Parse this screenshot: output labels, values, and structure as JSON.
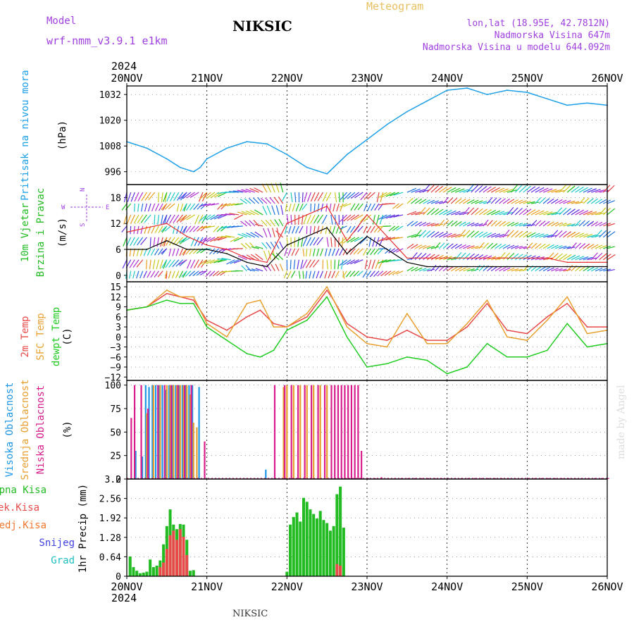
{
  "header": {
    "model_label": "Model",
    "model_name": "wrf-nmm_v3.9.1 e1km",
    "station": "NIKSIC",
    "meteogram": "Meteogram",
    "lonlat": "lon,lat (18.95E, 42.7812N)",
    "altitude": "Nadmorska Visina 647m",
    "altitude_model": "Nadmorska Visina u modelu 644.092m",
    "credit": "made by Angel",
    "footer_station": "NIKSIC"
  },
  "colors": {
    "pressure": "#1ea0e6",
    "wind_label": "#22bb22",
    "temp2m": "#e84a4a",
    "sfc_temp": "#e8a030",
    "dewpoint": "#22cc22",
    "cloud_high": "#1e96e6",
    "cloud_mid": "#e8a030",
    "cloud_low": "#d81c8c",
    "wind_speed": "#000000",
    "wind_gust": "#e83030",
    "precip_total": "#22bb22",
    "precip_conv": "#e84a4a",
    "precip_frozen": "#f07830",
    "snow": "#4040e0",
    "hail": "#20c0c0",
    "compass": "#a040e0",
    "credit": "#dddddd"
  },
  "chart_data": [
    {
      "id": "pressure",
      "type": "line",
      "ylabel": [
        "Pritisak na nivou mora",
        "(hPa)"
      ],
      "ylim": [
        990,
        1036
      ],
      "yticks": [
        996,
        1008,
        1020,
        1032
      ],
      "x_units": "hours since 20NOV 00UTC",
      "series": [
        {
          "color": "#1ea0e6",
          "x": [
            0,
            6,
            12,
            16,
            20,
            22,
            24,
            30,
            36,
            42,
            48,
            54,
            60,
            62,
            66,
            72,
            78,
            84,
            90,
            96,
            102,
            108,
            114,
            120,
            126,
            132,
            138,
            144
          ],
          "y": [
            1010,
            1007,
            1002,
            998,
            996,
            998,
            1002,
            1007,
            1010,
            1009,
            1004,
            998,
            995,
            998,
            1004,
            1011,
            1018,
            1024,
            1029,
            1034,
            1035,
            1032,
            1034,
            1033,
            1030,
            1027,
            1028,
            1027
          ]
        }
      ]
    },
    {
      "id": "wind",
      "type": "line",
      "ylabel": [
        "10m Vjetar",
        "Brzina i Pravac",
        "(m/s)"
      ],
      "compass": [
        "N",
        "W",
        "E",
        "S"
      ],
      "ylim": [
        -1.5,
        21
      ],
      "yticks": [
        0,
        6,
        12,
        18
      ],
      "series": [
        {
          "name": "speed",
          "color": "#000000",
          "x": [
            0,
            6,
            12,
            18,
            24,
            30,
            36,
            42,
            48,
            54,
            60,
            66,
            72,
            78,
            84,
            90,
            96,
            102,
            108,
            114,
            120,
            126,
            132,
            138,
            144
          ],
          "y": [
            6,
            6,
            8,
            6,
            6,
            5,
            3,
            2,
            7,
            9,
            11,
            5,
            9,
            6,
            3,
            2,
            2,
            2,
            2,
            2,
            2,
            2,
            2,
            2,
            2
          ]
        },
        {
          "name": "gust",
          "color": "#e83030",
          "x": [
            0,
            6,
            12,
            18,
            24,
            30,
            36,
            42,
            48,
            54,
            60,
            66,
            72,
            78,
            84,
            90,
            96,
            102,
            108,
            114,
            120,
            126,
            132,
            138,
            144
          ],
          "y": [
            10,
            11,
            12,
            9,
            7,
            6,
            4,
            3,
            12,
            14,
            16,
            8,
            14,
            9,
            4,
            4,
            4,
            4,
            4,
            4,
            4,
            4,
            3,
            3,
            3
          ]
        }
      ],
      "barb_dir": [
        200,
        200,
        210,
        220,
        240,
        260,
        300,
        330,
        190,
        200,
        190,
        230,
        210,
        250,
        60,
        60,
        60,
        60,
        60,
        60,
        60,
        60,
        60,
        60,
        60
      ]
    },
    {
      "id": "temperature",
      "type": "line",
      "ylabel": [
        "2m Temp",
        "SFC Temp",
        "dewpt Temp",
        "(C)"
      ],
      "ylim": [
        -13,
        16.5
      ],
      "yticks": [
        15,
        12,
        9,
        6,
        3,
        0,
        -3,
        -6,
        -9,
        -12
      ],
      "series": [
        {
          "name": "2m Temp",
          "color": "#e84a4a",
          "x": [
            0,
            6,
            12,
            16,
            20,
            24,
            30,
            36,
            40,
            44,
            48,
            54,
            60,
            62,
            66,
            72,
            78,
            84,
            90,
            96,
            102,
            108,
            114,
            120,
            126,
            132,
            138,
            144
          ],
          "y": [
            8,
            9,
            13,
            12,
            11,
            5,
            2,
            6,
            8,
            4,
            3,
            6,
            14,
            11,
            4,
            0,
            -1,
            2,
            -1,
            -1,
            3,
            10,
            2,
            1,
            6,
            10,
            3,
            3
          ]
        },
        {
          "name": "SFC Temp",
          "color": "#e8a030",
          "x": [
            0,
            6,
            12,
            16,
            20,
            24,
            30,
            36,
            40,
            44,
            48,
            54,
            60,
            62,
            66,
            72,
            78,
            84,
            90,
            96,
            102,
            108,
            114,
            120,
            126,
            132,
            138,
            144
          ],
          "y": [
            8,
            9,
            14,
            12,
            12,
            4,
            0,
            10,
            11,
            3,
            3,
            7,
            15,
            11,
            3,
            -2,
            -3,
            7,
            -2,
            -2,
            4,
            11,
            0,
            -1,
            5,
            12,
            1,
            2
          ]
        },
        {
          "name": "dewpt Temp",
          "color": "#22cc22",
          "x": [
            0,
            6,
            12,
            16,
            20,
            24,
            30,
            36,
            40,
            44,
            48,
            54,
            60,
            62,
            66,
            72,
            78,
            84,
            90,
            96,
            102,
            108,
            114,
            120,
            126,
            132,
            138,
            144
          ],
          "y": [
            8,
            9,
            11,
            10,
            10,
            3,
            -1,
            -5,
            -6,
            -4,
            2,
            5,
            12,
            8,
            0,
            -9,
            -8,
            -6,
            -7,
            -11,
            -9,
            -2,
            -6,
            -6,
            -4,
            4,
            -3,
            -2
          ]
        }
      ]
    },
    {
      "id": "clouds",
      "type": "bar",
      "ylabel": [
        "Visoka Oblacnost",
        "Srednja Oblacnost",
        "Niska Oblacnost",
        "(%)"
      ],
      "ylim": [
        0,
        105
      ],
      "yticks": [
        0,
        25,
        50,
        75,
        100
      ],
      "series": [
        {
          "name": "Visoka Oblacnost",
          "color": "#1e96e6",
          "x": [
            3,
            5,
            6,
            7,
            8,
            9,
            10,
            11,
            12,
            13,
            14,
            15,
            16,
            17,
            18,
            19,
            20,
            22,
            42,
            56
          ],
          "y": [
            30,
            24,
            100,
            98,
            100,
            100,
            100,
            100,
            95,
            100,
            100,
            100,
            100,
            100,
            100,
            100,
            100,
            98,
            10,
            0
          ]
        },
        {
          "name": "Srednja Oblacnost",
          "color": "#e8a030",
          "x": [
            6,
            8,
            10,
            12,
            13,
            14,
            15,
            16,
            17,
            18,
            19,
            20,
            21,
            47,
            48,
            50,
            52,
            54,
            56,
            58,
            60
          ],
          "y": [
            70,
            100,
            100,
            100,
            100,
            100,
            100,
            100,
            100,
            100,
            90,
            60,
            55,
            98,
            100,
            100,
            100,
            100,
            100,
            100,
            100
          ]
        },
        {
          "name": "Niska Oblacnost",
          "color": "#d81c8c",
          "x": [
            1,
            2,
            4,
            6,
            9,
            11,
            13,
            15,
            17,
            19,
            23,
            44,
            47,
            49,
            51,
            53,
            55,
            57,
            59,
            61,
            62,
            63,
            64,
            65,
            66,
            67,
            68,
            69,
            70,
            72,
            74,
            76,
            78,
            80,
            82,
            84,
            86,
            88,
            90,
            92,
            94,
            96,
            98,
            100,
            102,
            104,
            106,
            108,
            110,
            112,
            114,
            116,
            118,
            120,
            122,
            124,
            126,
            128,
            130,
            132,
            134,
            136,
            138,
            140,
            142,
            144
          ],
          "y": [
            65,
            100,
            100,
            75,
            100,
            100,
            100,
            100,
            100,
            100,
            40,
            100,
            100,
            100,
            100,
            100,
            100,
            100,
            100,
            100,
            100,
            100,
            100,
            100,
            100,
            100,
            100,
            100,
            30,
            1,
            1,
            2,
            1,
            1,
            1,
            1,
            1,
            1,
            1,
            1,
            1,
            1,
            1,
            1,
            1,
            1,
            1,
            1,
            1,
            1,
            1,
            1,
            1,
            1,
            1,
            1,
            1,
            1,
            1,
            1,
            1,
            1,
            1,
            1,
            1,
            1
          ]
        }
      ]
    },
    {
      "id": "precip",
      "type": "bar",
      "ylabel": [
        "Ukupna Kisa",
        "Konvek.Kisa",
        "Zaledj.Kisa",
        "Snijeg",
        "Grad",
        "1hr Precip (mm)"
      ],
      "ylim": [
        0,
        3.2
      ],
      "yticks": [
        0,
        0.64,
        1.28,
        1.92,
        2.56,
        3.2
      ],
      "xticks": [
        "20NOV",
        "21NOV",
        "22NOV",
        "23NOV",
        "24NOV",
        "25NOV",
        "26NOV"
      ],
      "year": "2024",
      "series": [
        {
          "name": "Ukupna Kisa",
          "color": "#22bb22",
          "x": [
            1,
            2,
            3,
            4,
            5,
            6,
            7,
            8,
            9,
            10,
            11,
            12,
            13,
            14,
            15,
            16,
            17,
            18,
            19,
            20,
            21,
            22,
            48,
            49,
            50,
            51,
            52,
            53,
            54,
            55,
            56,
            57,
            58,
            59,
            60,
            61,
            62,
            63,
            64,
            65,
            66
          ],
          "y": [
            0.65,
            0.3,
            0.18,
            0.1,
            0.12,
            0.15,
            0.55,
            0.3,
            0.35,
            0.52,
            1.05,
            1.65,
            2.2,
            1.7,
            1.55,
            1.72,
            1.7,
            1.2,
            0.18,
            0.2,
            0.0,
            0.0,
            0.15,
            1.7,
            1.95,
            2.1,
            1.8,
            2.58,
            2.45,
            2.2,
            2.05,
            1.9,
            2.15,
            1.85,
            1.75,
            1.5,
            1.65,
            2.7,
            2.95,
            1.6,
            0.0
          ]
        },
        {
          "name": "Konvek.Kisa",
          "color": "#e84a4a",
          "x": [
            10,
            11,
            12,
            13,
            14,
            15,
            16,
            17,
            18,
            63,
            64
          ],
          "y": [
            0.3,
            0.45,
            0.9,
            1.35,
            1.5,
            1.2,
            1.55,
            1.3,
            0.7,
            0.4,
            0.35
          ]
        }
      ]
    }
  ]
}
